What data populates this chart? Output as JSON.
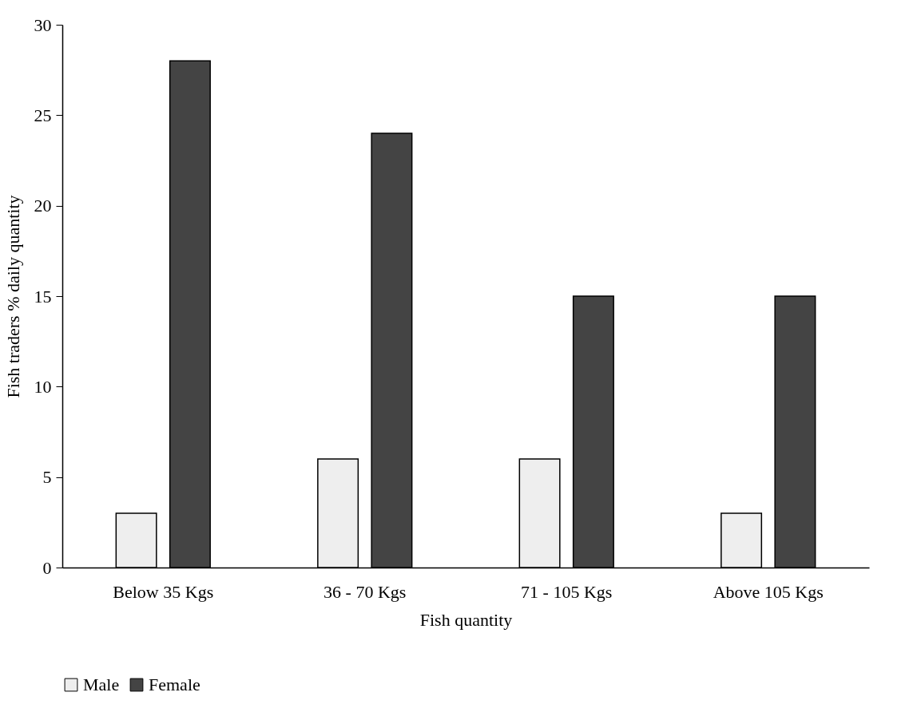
{
  "chart_data": {
    "type": "bar",
    "xlabel": "Fish quantity",
    "ylabel": "Fish traders % daily quantity",
    "categories": [
      "Below 35 Kgs",
      "36 - 70 Kgs",
      "71 - 105 Kgs",
      "Above 105 Kgs"
    ],
    "series": [
      {
        "name": "Male",
        "color": "#eeeeee",
        "values": [
          3,
          6,
          6,
          3
        ]
      },
      {
        "name": "Female",
        "color": "#444444",
        "values": [
          28,
          24,
          15,
          15
        ]
      }
    ],
    "ylim": [
      0,
      30
    ],
    "yticks": [
      0,
      5,
      10,
      15,
      20,
      25,
      30
    ],
    "grid": false,
    "legend": "bottom"
  }
}
